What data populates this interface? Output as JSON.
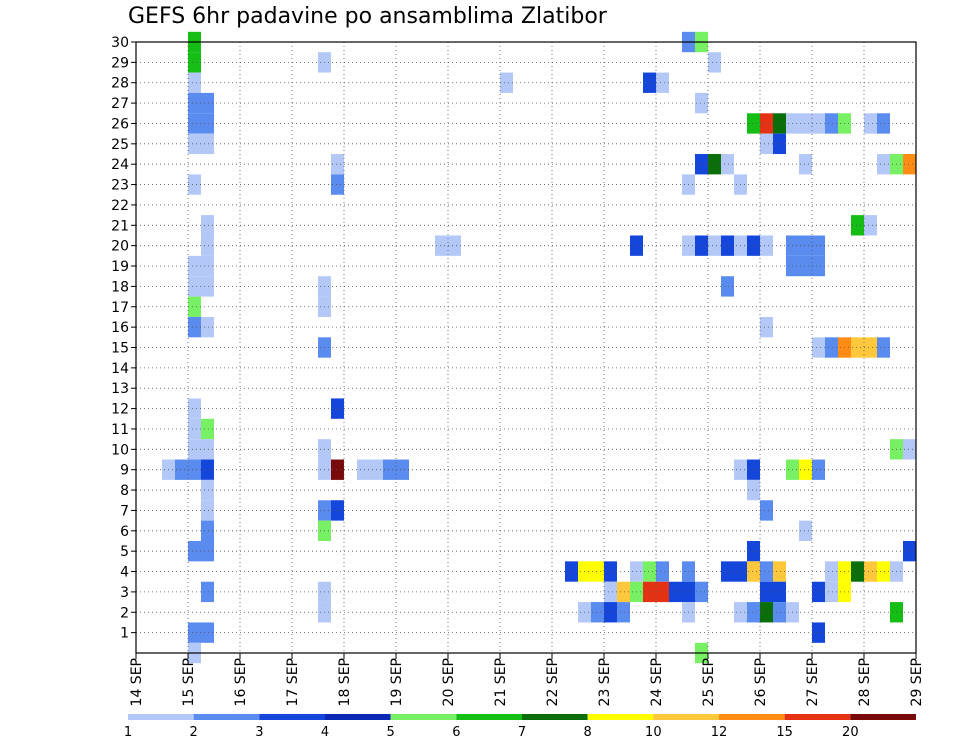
{
  "title": "GEFS 6hr padavine po ansamblima Zlatibor",
  "chart_data": {
    "type": "heatmap",
    "title": "GEFS 6hr padavine po ansamblima Zlatibor",
    "xlabel": "",
    "ylabel": "",
    "x_ticks": [
      "14 SEP",
      "15 SEP",
      "16 SEP",
      "17 SEP",
      "18 SEP",
      "19 SEP",
      "20 SEP",
      "21 SEP",
      "22 SEP",
      "23 SEP",
      "24 SEP",
      "25 SEP",
      "26 SEP",
      "27 SEP",
      "28 SEP",
      "29 SEP"
    ],
    "y_ticks": [
      "1",
      "2",
      "3",
      "4",
      "5",
      "6",
      "7",
      "8",
      "9",
      "10",
      "11",
      "12",
      "13",
      "14",
      "15",
      "16",
      "17",
      "18",
      "19",
      "20",
      "21",
      "22",
      "23",
      "24",
      "25",
      "26",
      "27",
      "28",
      "29",
      "30"
    ],
    "x_range": [
      "14 SEP 00z",
      "29 SEP 00z"
    ],
    "y_range": [
      0,
      30
    ],
    "steps_per_day": 4,
    "grid": true,
    "legend": {
      "placement": "bottom",
      "labels": [
        "1",
        "2",
        "3",
        "4",
        "5",
        "6",
        "7",
        "8",
        "10",
        "12",
        "15",
        "20"
      ],
      "colors": [
        "#b4c8f8",
        "#5a8cf0",
        "#1446dc",
        "#0a28b4",
        "#78f064",
        "#14be14",
        "#0a6e0a",
        "#ffff00",
        "#ffc83c",
        "#ff8c14",
        "#e63214",
        "#780a0a"
      ]
    },
    "colors": {
      "1": "#b4c8f8",
      "2": "#5a8cf0",
      "3": "#1446dc",
      "4": "#0a28b4",
      "5": "#78f064",
      "6": "#14be14",
      "7": "#0a6e0a",
      "8": "#ffff00",
      "10": "#ffc83c",
      "12": "#ff8c14",
      "15": "#e63214",
      "20": "#780a0a"
    },
    "cells": [
      [
        30,
        4,
        6
      ],
      [
        29,
        4,
        6
      ],
      [
        28,
        4,
        1
      ],
      [
        27,
        4,
        2
      ],
      [
        27,
        5,
        2
      ],
      [
        26,
        4,
        2
      ],
      [
        26,
        5,
        2
      ],
      [
        25,
        4,
        1
      ],
      [
        25,
        5,
        1
      ],
      [
        23,
        4,
        1
      ],
      [
        21,
        5,
        1
      ],
      [
        20,
        5,
        1
      ],
      [
        19,
        4,
        1
      ],
      [
        19,
        5,
        1
      ],
      [
        18,
        4,
        1
      ],
      [
        18,
        5,
        1
      ],
      [
        17,
        4,
        5
      ],
      [
        16,
        4,
        2
      ],
      [
        16,
        5,
        1
      ],
      [
        12,
        4,
        1
      ],
      [
        11,
        4,
        1
      ],
      [
        11,
        5,
        5
      ],
      [
        10,
        4,
        1
      ],
      [
        10,
        5,
        1
      ],
      [
        9,
        2,
        1
      ],
      [
        9,
        3,
        2
      ],
      [
        9,
        4,
        2
      ],
      [
        9,
        5,
        3
      ],
      [
        8,
        5,
        1
      ],
      [
        7,
        5,
        1
      ],
      [
        6,
        5,
        2
      ],
      [
        5,
        4,
        2
      ],
      [
        5,
        5,
        2
      ],
      [
        3,
        5,
        2
      ],
      [
        1,
        4,
        2
      ],
      [
        1,
        5,
        2
      ],
      [
        0,
        4,
        1
      ],
      [
        29,
        14,
        1
      ],
      [
        28,
        28,
        1
      ],
      [
        24,
        15,
        1
      ],
      [
        23,
        15,
        2
      ],
      [
        18,
        14,
        1
      ],
      [
        17,
        14,
        1
      ],
      [
        15,
        14,
        2
      ],
      [
        12,
        15,
        3
      ],
      [
        10,
        14,
        1
      ],
      [
        9,
        14,
        1
      ],
      [
        9,
        15,
        20
      ],
      [
        7,
        14,
        2
      ],
      [
        7,
        15,
        3
      ],
      [
        6,
        14,
        5
      ],
      [
        3,
        14,
        1
      ],
      [
        2,
        14,
        1
      ],
      [
        9,
        17,
        1
      ],
      [
        9,
        18,
        1
      ],
      [
        9,
        19,
        2
      ],
      [
        9,
        20,
        2
      ],
      [
        20,
        23,
        1
      ],
      [
        20,
        24,
        1
      ],
      [
        30,
        42,
        2
      ],
      [
        30,
        43,
        5
      ],
      [
        29,
        44,
        1
      ],
      [
        28,
        39,
        3
      ],
      [
        28,
        40,
        1
      ],
      [
        27,
        43,
        1
      ],
      [
        26,
        47,
        6
      ],
      [
        26,
        48,
        15
      ],
      [
        26,
        49,
        7
      ],
      [
        26,
        50,
        1
      ],
      [
        26,
        51,
        1
      ],
      [
        26,
        52,
        1
      ],
      [
        26,
        53,
        2
      ],
      [
        26,
        54,
        5
      ],
      [
        26,
        56,
        1
      ],
      [
        26,
        57,
        2
      ],
      [
        25,
        48,
        1
      ],
      [
        25,
        49,
        3
      ],
      [
        24,
        43,
        3
      ],
      [
        24,
        44,
        7
      ],
      [
        24,
        45,
        1
      ],
      [
        24,
        51,
        1
      ],
      [
        24,
        57,
        1
      ],
      [
        24,
        58,
        5
      ],
      [
        24,
        59,
        12
      ],
      [
        23,
        42,
        1
      ],
      [
        23,
        46,
        1
      ],
      [
        21,
        55,
        6
      ],
      [
        21,
        56,
        1
      ],
      [
        20,
        38,
        3
      ],
      [
        20,
        42,
        1
      ],
      [
        20,
        43,
        3
      ],
      [
        20,
        44,
        1
      ],
      [
        20,
        45,
        3
      ],
      [
        20,
        46,
        1
      ],
      [
        20,
        47,
        3
      ],
      [
        20,
        48,
        1
      ],
      [
        20,
        50,
        2
      ],
      [
        20,
        51,
        2
      ],
      [
        20,
        52,
        2
      ],
      [
        19,
        50,
        2
      ],
      [
        19,
        51,
        2
      ],
      [
        19,
        52,
        2
      ],
      [
        18,
        45,
        2
      ],
      [
        16,
        48,
        1
      ],
      [
        15,
        52,
        1
      ],
      [
        15,
        53,
        2
      ],
      [
        15,
        54,
        12
      ],
      [
        15,
        55,
        10
      ],
      [
        15,
        56,
        10
      ],
      [
        15,
        57,
        2
      ],
      [
        10,
        58,
        5
      ],
      [
        10,
        59,
        1
      ],
      [
        9,
        46,
        1
      ],
      [
        9,
        47,
        3
      ],
      [
        9,
        50,
        5
      ],
      [
        9,
        51,
        8
      ],
      [
        9,
        52,
        2
      ],
      [
        8,
        47,
        1
      ],
      [
        7,
        48,
        2
      ],
      [
        6,
        51,
        1
      ],
      [
        5,
        47,
        3
      ],
      [
        5,
        59,
        3
      ],
      [
        4,
        33,
        3
      ],
      [
        4,
        34,
        8
      ],
      [
        4,
        35,
        8
      ],
      [
        4,
        36,
        3
      ],
      [
        4,
        38,
        1
      ],
      [
        4,
        39,
        5
      ],
      [
        4,
        40,
        2
      ],
      [
        4,
        42,
        2
      ],
      [
        4,
        45,
        3
      ],
      [
        4,
        46,
        3
      ],
      [
        4,
        47,
        10
      ],
      [
        4,
        48,
        2
      ],
      [
        4,
        49,
        10
      ],
      [
        4,
        53,
        1
      ],
      [
        4,
        54,
        8
      ],
      [
        4,
        55,
        7
      ],
      [
        4,
        56,
        10
      ],
      [
        4,
        57,
        8
      ],
      [
        4,
        58,
        1
      ],
      [
        3,
        36,
        1
      ],
      [
        3,
        37,
        10
      ],
      [
        3,
        38,
        5
      ],
      [
        3,
        39,
        15
      ],
      [
        3,
        40,
        15
      ],
      [
        3,
        41,
        3
      ],
      [
        3,
        42,
        3
      ],
      [
        3,
        43,
        2
      ],
      [
        3,
        48,
        3
      ],
      [
        3,
        49,
        3
      ],
      [
        3,
        52,
        3
      ],
      [
        3,
        53,
        1
      ],
      [
        3,
        54,
        8
      ],
      [
        2,
        34,
        1
      ],
      [
        2,
        35,
        2
      ],
      [
        2,
        36,
        3
      ],
      [
        2,
        37,
        2
      ],
      [
        2,
        42,
        1
      ],
      [
        2,
        46,
        1
      ],
      [
        2,
        47,
        2
      ],
      [
        2,
        48,
        7
      ],
      [
        2,
        49,
        2
      ],
      [
        2,
        50,
        1
      ],
      [
        2,
        58,
        6
      ],
      [
        1,
        52,
        3
      ],
      [
        0,
        43,
        5
      ]
    ]
  }
}
